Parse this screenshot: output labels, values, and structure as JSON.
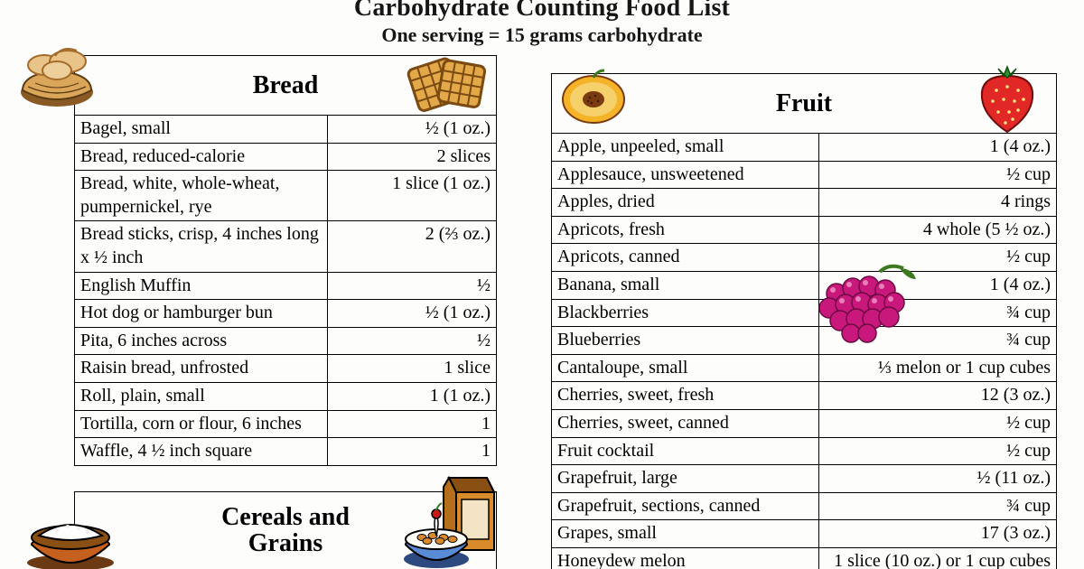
{
  "title": "Carbohydrate Counting Food List",
  "subtitle": "One serving = 15 grams carbohydrate",
  "colors": {
    "text": "#000000",
    "border": "#000000",
    "background": "#fdfdfc",
    "basket": "#d9a65a",
    "basket_dark": "#8a5a25",
    "bread_fill": "#e8c488",
    "bread_crust": "#a46b2a",
    "waffle_fill": "#e3a948",
    "waffle_grid": "#7a4a12",
    "peach_skin": "#f5b327",
    "peach_flesh": "#f6d06a",
    "peach_pit": "#7a3b10",
    "strawberry": "#e22727",
    "strawberry_leaf": "#2f8f2f",
    "strawberry_seed": "#ffe680",
    "grapes": "#c8187c",
    "grapes_stem": "#3d7a1f",
    "bowl_rice": "#ffffff",
    "bowl_body": "#c6601f",
    "bowl_shadow": "#6b3a14",
    "carton": "#d98b2b",
    "carton_dark": "#8a4f12",
    "cereal_bowl": "#5a8bd6",
    "milk": "#fdfdf7",
    "cherry": "#c81919"
  },
  "typography": {
    "title_fontsize_pt": 20,
    "subtitle_fontsize_pt": 16,
    "section_header_fontsize_pt": 20,
    "cell_fontsize_pt": 15,
    "font_family": "Times New Roman"
  },
  "sections": {
    "bread": {
      "header": "Bread",
      "icon_left": "bread-basket-icon",
      "icon_right": "waffle-icon",
      "rows": [
        {
          "name": "Bagel, small",
          "amount": "½ (1 oz.)"
        },
        {
          "name": "Bread, reduced-calorie",
          "amount": "2 slices"
        },
        {
          "name": "Bread, white, whole-wheat, pumpernickel, rye",
          "amount": "1 slice (1 oz.)"
        },
        {
          "name": "Bread sticks, crisp, 4 inches long x ½ inch",
          "amount": "2 (⅔ oz.)"
        },
        {
          "name": "English Muffin",
          "amount": "½"
        },
        {
          "name": "Hot dog or hamburger bun",
          "amount": "½ (1 oz.)"
        },
        {
          "name": "Pita, 6 inches across",
          "amount": "½"
        },
        {
          "name": "Raisin bread, unfrosted",
          "amount": "1 slice"
        },
        {
          "name": "Roll, plain, small",
          "amount": "1 (1 oz.)"
        },
        {
          "name": "Tortilla, corn or flour, 6 inches",
          "amount": "1"
        },
        {
          "name": "Waffle, 4 ½ inch square",
          "amount": "1"
        }
      ]
    },
    "cereals": {
      "header": "Cereals and Grains",
      "icon_left": "rice-bowl-icon",
      "icon_right": "cereal-carton-bowl-icon"
    },
    "fruit": {
      "header": "Fruit",
      "icon_left": "peach-half-icon",
      "icon_right": "strawberry-icon",
      "overlay_icon": "grapes-icon",
      "rows": [
        {
          "name": "Apple, unpeeled, small",
          "amount": "1 (4 oz.)"
        },
        {
          "name": "Applesauce, unsweetened",
          "amount": "½ cup"
        },
        {
          "name": "Apples, dried",
          "amount": "4 rings"
        },
        {
          "name": "Apricots, fresh",
          "amount": "4 whole (5 ½ oz.)"
        },
        {
          "name": "Apricots, canned",
          "amount": "½ cup"
        },
        {
          "name": "Banana, small",
          "amount": "1 (4 oz.)"
        },
        {
          "name": "Blackberries",
          "amount": "¾ cup"
        },
        {
          "name": "Blueberries",
          "amount": "¾ cup"
        },
        {
          "name": "Cantaloupe, small",
          "amount": "⅓ melon or 1 cup cubes"
        },
        {
          "name": "Cherries, sweet, fresh",
          "amount": "12 (3 oz.)"
        },
        {
          "name": "Cherries, sweet, canned",
          "amount": "½ cup"
        },
        {
          "name": "Fruit cocktail",
          "amount": "½ cup"
        },
        {
          "name": "Grapefruit, large",
          "amount": "½ (11 oz.)"
        },
        {
          "name": "Grapefruit, sections, canned",
          "amount": "¾ cup"
        },
        {
          "name": "Grapes, small",
          "amount": "17 (3 oz.)"
        },
        {
          "name": "Honeydew melon",
          "amount": "1 slice (10 oz.) or 1 cup cubes"
        }
      ]
    }
  }
}
